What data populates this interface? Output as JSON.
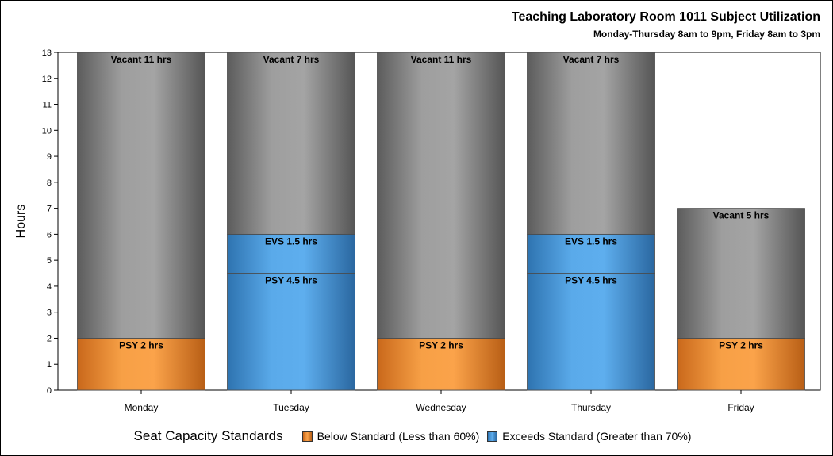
{
  "title": "Teaching Laboratory Room 1011 Subject Utilization",
  "subtitle": "Monday-Thursday 8am to 9pm, Friday 8am to 3pm",
  "legend": {
    "title": "Seat Capacity Standards",
    "items": [
      {
        "label": "Below Standard (Less than 60%)",
        "color": "#f39a3c"
      },
      {
        "label": "Exceeds Standard (Greater than 70%)",
        "color": "#4a9fe0"
      }
    ]
  },
  "chart_data": {
    "type": "bar",
    "stacked": true,
    "ylabel": "Hours",
    "xlabel": "",
    "ylim": [
      0,
      13
    ],
    "categories": [
      "Monday",
      "Tuesday",
      "Wednesday",
      "Thursday",
      "Friday"
    ],
    "bars": [
      {
        "category": "Monday",
        "segments": [
          {
            "label": "PSY 2 hrs",
            "value": 2,
            "kind": "below"
          },
          {
            "label": "Vacant 11 hrs",
            "value": 11,
            "kind": "vacant"
          }
        ]
      },
      {
        "category": "Tuesday",
        "segments": [
          {
            "label": "PSY 4.5 hrs",
            "value": 4.5,
            "kind": "exceeds"
          },
          {
            "label": "EVS 1.5 hrs",
            "value": 1.5,
            "kind": "exceeds"
          },
          {
            "label": "Vacant 7 hrs",
            "value": 7,
            "kind": "vacant"
          }
        ]
      },
      {
        "category": "Wednesday",
        "segments": [
          {
            "label": "PSY 2 hrs",
            "value": 2,
            "kind": "below"
          },
          {
            "label": "Vacant 11 hrs",
            "value": 11,
            "kind": "vacant"
          }
        ]
      },
      {
        "category": "Thursday",
        "segments": [
          {
            "label": "PSY 4.5 hrs",
            "value": 4.5,
            "kind": "exceeds"
          },
          {
            "label": "EVS 1.5 hrs",
            "value": 1.5,
            "kind": "exceeds"
          },
          {
            "label": "Vacant 7 hrs",
            "value": 7,
            "kind": "vacant"
          }
        ]
      },
      {
        "category": "Friday",
        "segments": [
          {
            "label": "PSY 2 hrs",
            "value": 2,
            "kind": "below"
          },
          {
            "label": "Vacant 5 hrs",
            "value": 5,
            "kind": "vacant"
          }
        ]
      }
    ],
    "colors": {
      "below": "#f39a3c",
      "exceeds": "#4a9fe0",
      "vacant": "#9a9a9a"
    },
    "grid": false,
    "legend_position": "bottom"
  }
}
